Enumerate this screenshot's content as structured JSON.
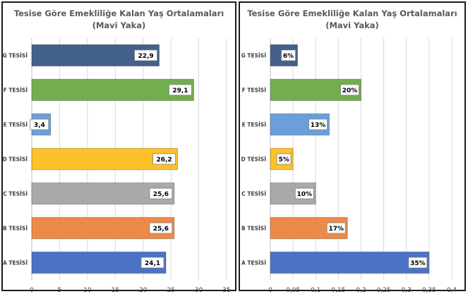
{
  "chart_data": [
    {
      "type": "bar",
      "orientation": "horizontal",
      "title": "Tesise Göre Emekliliğe Kalan Yaş Ortalamaları",
      "subtitle": "(Mavi Yaka)",
      "categories": [
        "G TESİSİ",
        "F TESİSİ",
        "E TESİSİ",
        "D TESİSİ",
        "C TESİSİ",
        "B TESİSİ",
        "A TESİSİ"
      ],
      "values": [
        22.9,
        29.1,
        3.4,
        26.2,
        25.6,
        25.6,
        24.1
      ],
      "value_labels": [
        "22,9",
        "29,1",
        "3,4",
        "26,2",
        "25,6",
        "25,6",
        "24,1"
      ],
      "colors": [
        "#44608c",
        "#72ae4f",
        "#6a9fd8",
        "#fdc12a",
        "#a9a9a9",
        "#ec8a4a",
        "#4b73c5"
      ],
      "xlim": [
        0,
        35
      ],
      "xticks": [
        0,
        5,
        10,
        15,
        20,
        25,
        30,
        35
      ],
      "xtick_labels": [
        "0",
        "5",
        "10",
        "15",
        "20",
        "25",
        "30",
        "35"
      ],
      "grid": true
    },
    {
      "type": "bar",
      "orientation": "horizontal",
      "title": "Tesise Göre Emekliliğe Kalan Yaş Ortalamaları",
      "subtitle": "(Mavi Yaka)",
      "categories": [
        "G TESİSİ",
        "F TESİSİ",
        "E TESİSİ",
        "D TESİSİ",
        "C TESİSİ",
        "B TESİSİ",
        "A TESİSİ"
      ],
      "values": [
        0.06,
        0.2,
        0.13,
        0.05,
        0.1,
        0.17,
        0.35
      ],
      "value_labels": [
        "6%",
        "20%",
        "13%",
        "5%",
        "10%",
        "17%",
        "35%"
      ],
      "colors": [
        "#44608c",
        "#72ae4f",
        "#6a9fd8",
        "#fdc12a",
        "#a9a9a9",
        "#ec8a4a",
        "#4b73c5"
      ],
      "xlim": [
        0,
        0.4
      ],
      "xticks": [
        0,
        0.05,
        0.1,
        0.15,
        0.2,
        0.25,
        0.3,
        0.35,
        0.4
      ],
      "xtick_labels": [
        "0",
        "0,05",
        "0,1",
        "0,15",
        "0,2",
        "0,25",
        "0,3",
        "0,35",
        "0,4"
      ],
      "grid": true
    }
  ]
}
